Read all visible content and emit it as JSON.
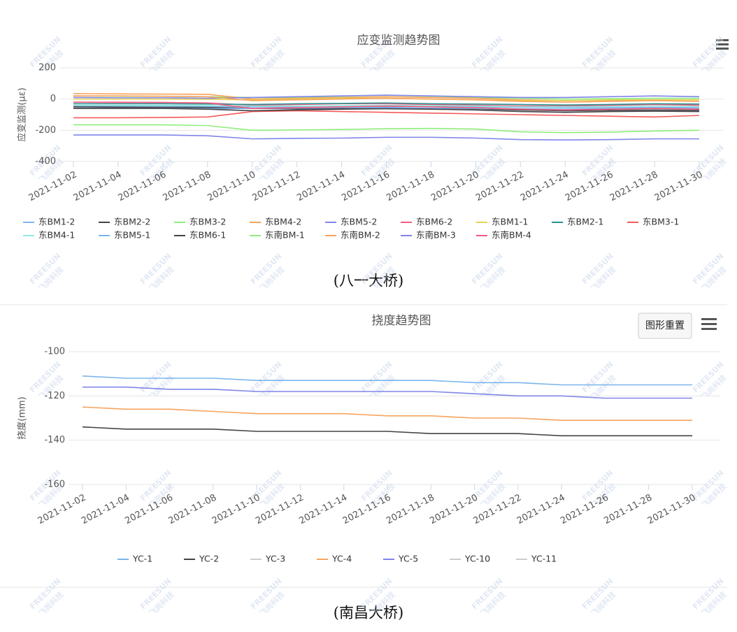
{
  "watermark": {
    "brand": "FREESUN",
    "name": "飞尚科技"
  },
  "captions": [
    "(八一大桥)",
    "(南昌大桥)"
  ],
  "reset_button": "图形重置",
  "chart_data": [
    {
      "type": "line",
      "title": "应变监测趋势图",
      "y_label": "应变监测(με)",
      "categories": [
        "2021-11-02",
        "2021-11-04",
        "2021-11-06",
        "2021-11-08",
        "2021-11-10",
        "2021-11-12",
        "2021-11-14",
        "2021-11-16",
        "2021-11-18",
        "2021-11-20",
        "2021-11-22",
        "2021-11-24",
        "2021-11-26",
        "2021-11-28",
        "2021-11-30"
      ],
      "ylim": [
        -400,
        200
      ],
      "yticks": [
        -400,
        -200,
        0,
        200
      ],
      "grid": true,
      "series": [
        {
          "name": "东BM1-2",
          "color": "#7cb5ec",
          "values": [
            -45,
            -45,
            -46,
            -48,
            -50,
            -52,
            -50,
            -50,
            -48,
            -50,
            -52,
            -55,
            -55,
            -54,
            -55
          ]
        },
        {
          "name": "东BM2-2",
          "color": "#434348",
          "values": [
            -50,
            -52,
            -53,
            -54,
            -60,
            -62,
            -60,
            -58,
            -60,
            -62,
            -70,
            -75,
            -72,
            -70,
            -72
          ]
        },
        {
          "name": "东BM3-2",
          "color": "#90ed7d",
          "values": [
            20,
            18,
            18,
            15,
            10,
            10,
            12,
            15,
            12,
            10,
            5,
            0,
            2,
            5,
            5
          ]
        },
        {
          "name": "东BM4-2",
          "color": "#f7a35c",
          "values": [
            35,
            33,
            32,
            30,
            0,
            5,
            10,
            15,
            10,
            5,
            -5,
            -10,
            -8,
            -5,
            -5
          ]
        },
        {
          "name": "东BM5-2",
          "color": "#8085e9",
          "values": [
            10,
            8,
            8,
            5,
            10,
            15,
            20,
            25,
            20,
            15,
            10,
            10,
            15,
            20,
            15
          ]
        },
        {
          "name": "东BM6-2",
          "color": "#f15c80",
          "values": [
            -20,
            -22,
            -22,
            -25,
            -40,
            -35,
            -30,
            -30,
            -35,
            -40,
            -45,
            -45,
            -40,
            -35,
            -40
          ]
        },
        {
          "name": "东BM1-1",
          "color": "#e4d354",
          "values": [
            0,
            0,
            0,
            -2,
            -5,
            0,
            5,
            5,
            0,
            -5,
            -10,
            -10,
            -5,
            -5,
            -5
          ]
        },
        {
          "name": "东BM2-1",
          "color": "#2b908f",
          "values": [
            -30,
            -30,
            -30,
            -32,
            -35,
            -30,
            -28,
            -25,
            -30,
            -32,
            -35,
            -38,
            -35,
            -30,
            -32
          ]
        },
        {
          "name": "东BM3-1",
          "color": "#f45b5b",
          "values": [
            -120,
            -120,
            -118,
            -115,
            -80,
            -75,
            -80,
            -85,
            -90,
            -95,
            -100,
            -105,
            -110,
            -115,
            -105
          ]
        },
        {
          "name": "东BM4-1",
          "color": "#91e8e1",
          "values": [
            -40,
            -40,
            -40,
            -42,
            -45,
            -45,
            -42,
            -40,
            -42,
            -45,
            -50,
            -50,
            -48,
            -45,
            -48
          ]
        },
        {
          "name": "东BM5-1",
          "color": "#7cb5ec",
          "values": [
            -60,
            -60,
            -60,
            -62,
            -60,
            -58,
            -55,
            -55,
            -58,
            -60,
            -62,
            -65,
            -62,
            -60,
            -62
          ]
        },
        {
          "name": "东BM6-1",
          "color": "#434348",
          "values": [
            -60,
            -60,
            -60,
            -65,
            -75,
            -70,
            -65,
            -62,
            -65,
            -70,
            -80,
            -85,
            -80,
            -78,
            -80
          ]
        },
        {
          "name": "东南BM-1",
          "color": "#90ed7d",
          "values": [
            -165,
            -165,
            -165,
            -170,
            -200,
            -198,
            -195,
            -190,
            -188,
            -192,
            -210,
            -215,
            -212,
            -205,
            -200
          ]
        },
        {
          "name": "东南BM-2",
          "color": "#f7a35c",
          "values": [
            20,
            20,
            18,
            15,
            -10,
            -5,
            0,
            5,
            0,
            -5,
            -15,
            -20,
            -15,
            -10,
            -15
          ]
        },
        {
          "name": "东南BM-3",
          "color": "#8085e9",
          "values": [
            -230,
            -230,
            -230,
            -235,
            -255,
            -252,
            -250,
            -245,
            -245,
            -250,
            -260,
            -262,
            -260,
            -255,
            -255
          ]
        },
        {
          "name": "东南BM-4",
          "color": "#f15c80",
          "values": [
            -20,
            -20,
            -22,
            -25,
            -60,
            -55,
            -50,
            -45,
            -50,
            -55,
            -65,
            -70,
            -65,
            -60,
            -65
          ]
        }
      ]
    },
    {
      "type": "line",
      "title": "挠度趋势图",
      "y_label": "挠度(mm)",
      "categories": [
        "2021-11-02",
        "2021-11-04",
        "2021-11-06",
        "2021-11-08",
        "2021-11-10",
        "2021-11-12",
        "2021-11-14",
        "2021-11-16",
        "2021-11-18",
        "2021-11-20",
        "2021-11-22",
        "2021-11-24",
        "2021-11-26",
        "2021-11-28",
        "2021-11-30"
      ],
      "ylim": [
        -160,
        -100
      ],
      "yticks": [
        -160,
        -140,
        -120,
        -100
      ],
      "grid": true,
      "series": [
        {
          "name": "YC-1",
          "color": "#7cb5ec",
          "visible": true,
          "values": [
            -111,
            -112,
            -112,
            -112,
            -113,
            -113,
            -113,
            -113,
            -113,
            -114,
            -114,
            -115,
            -115,
            -115,
            -115
          ]
        },
        {
          "name": "YC-2",
          "color": "#434348",
          "visible": true,
          "values": [
            -134,
            -135,
            -135,
            -135,
            -136,
            -136,
            -136,
            -136,
            -137,
            -137,
            -137,
            -138,
            -138,
            -138,
            -138
          ]
        },
        {
          "name": "YC-3",
          "color": "#cccccc",
          "visible": false
        },
        {
          "name": "YC-4",
          "color": "#f7a35c",
          "visible": true,
          "values": [
            -125,
            -126,
            -126,
            -127,
            -128,
            -128,
            -128,
            -129,
            -129,
            -130,
            -130,
            -131,
            -131,
            -131,
            -131
          ]
        },
        {
          "name": "YC-5",
          "color": "#8085e9",
          "visible": true,
          "values": [
            -116,
            -116,
            -117,
            -117,
            -118,
            -118,
            -118,
            -118,
            -118,
            -119,
            -120,
            -120,
            -121,
            -121,
            -121
          ]
        },
        {
          "name": "YC-10",
          "color": "#cccccc",
          "visible": false
        },
        {
          "name": "YC-11",
          "color": "#cccccc",
          "visible": false
        }
      ]
    }
  ]
}
